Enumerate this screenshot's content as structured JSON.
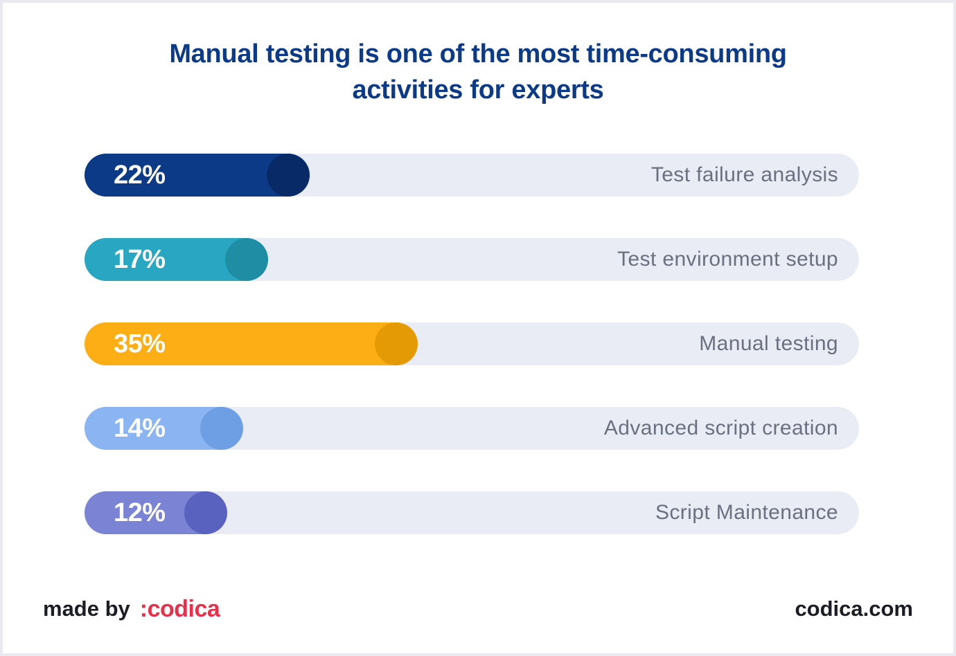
{
  "title_lines": [
    "Manual testing is one of the most time-consuming",
    "activities for experts"
  ],
  "chart_data": {
    "type": "bar",
    "orientation": "horizontal",
    "title": "Manual testing is one of the most time-consuming activities for experts",
    "categories": [
      "Test failure analysis",
      "Test environment setup",
      "Manual testing",
      "Advanced script creation",
      "Script Maintenance"
    ],
    "values": [
      22,
      17,
      35,
      14,
      12
    ],
    "value_labels": [
      "22%",
      "17%",
      "35%",
      "14%",
      "12%"
    ],
    "unit": "%",
    "xlim": [
      0,
      100
    ],
    "grid": false,
    "colors": [
      "#0c3a87",
      "#29a6c1",
      "#fdae14",
      "#8ab5f2",
      "#7b83d4"
    ],
    "knob_colors": [
      "#082b67",
      "#1f8da3",
      "#e39a05",
      "#6e9ee3",
      "#5a62bf"
    ],
    "track_color": "#e9ecf4"
  },
  "footer": {
    "made_by": "made by",
    "brand": ":codica",
    "site": "codica.com"
  },
  "colors": {
    "title": "#0c3a87",
    "brand": "#e8304a",
    "label": "#6b6f7f"
  }
}
